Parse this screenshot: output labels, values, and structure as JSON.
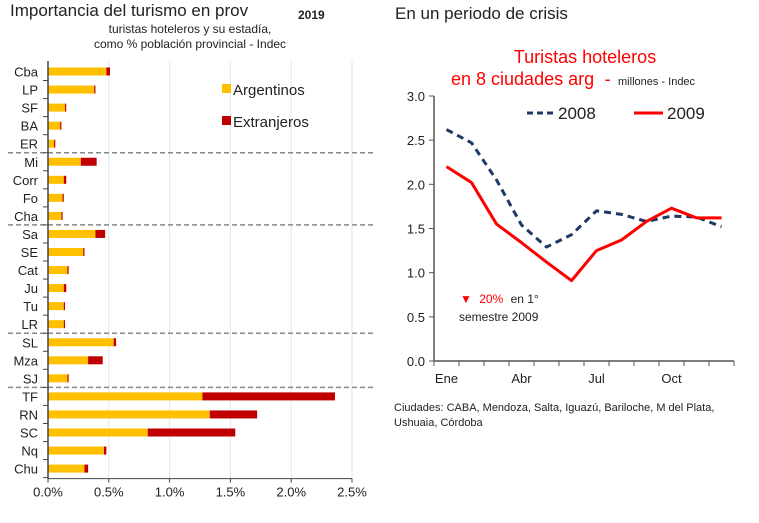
{
  "left": {
    "title": "Importancia del turismo en prov",
    "year": "2019",
    "subtitle_1": "turistas hoteleros y su estadía,",
    "subtitle_2": "como % población provincial - Indec"
  },
  "right": {
    "heading": "En un periodo de crisis",
    "chart_title_1": "Turistas hoteleros",
    "chart_title_2": "en 8 ciudades arg",
    "chart_title_sep": "-",
    "chart_title_units": "millones - Indec",
    "annotation_arrow": "▼",
    "annotation_pct": "20%",
    "annotation_rest": "en 1°",
    "annotation_line2": "semestre 2009",
    "footnote": "Ciudades: CABA, Mendoza, Salta, Iguazú, Bariloche, M del Plata, Ushuaia, Córdoba"
  },
  "colors": {
    "argentinos": "#FFC000",
    "extranjeros": "#C00000",
    "line_2008": "#1F3864",
    "line_2009": "#FF0000"
  },
  "chart_data": [
    {
      "type": "bar",
      "orientation": "horizontal",
      "stacked": true,
      "title": "Importancia del turismo en prov",
      "subtitle": "turistas hoteleros y su estadía, como % población provincial - Indec",
      "xlabel": "",
      "ylabel": "",
      "xlim": [
        0,
        0.025
      ],
      "x_ticks": [
        "0.0%",
        "0.5%",
        "1.0%",
        "1.5%",
        "2.0%",
        "2.5%"
      ],
      "x_tick_values": [
        0,
        0.005,
        0.01,
        0.015,
        0.02,
        0.025
      ],
      "grid": "vertical",
      "legend": {
        "position": "top-right",
        "entries": [
          "Argentinos",
          "Extranjeros"
        ]
      },
      "groups": [
        {
          "categories": [
            "Cba",
            "LP",
            "SF",
            "BA",
            "ER"
          ]
        },
        {
          "categories": [
            "Mi",
            "Corr",
            "Fo",
            "Cha"
          ]
        },
        {
          "categories": [
            "Sa",
            "SE",
            "Cat",
            "Ju",
            "Tu",
            "LR"
          ]
        },
        {
          "categories": [
            "SL",
            "Mza",
            "SJ"
          ]
        },
        {
          "categories": [
            "TF",
            "RN",
            "SC",
            "Nq",
            "Chu"
          ]
        }
      ],
      "categories": [
        "Cba",
        "LP",
        "SF",
        "BA",
        "ER",
        "Mi",
        "Corr",
        "Fo",
        "Cha",
        "Sa",
        "SE",
        "Cat",
        "Ju",
        "Tu",
        "LR",
        "SL",
        "Mza",
        "SJ",
        "TF",
        "RN",
        "SC",
        "Nq",
        "Chu"
      ],
      "series": [
        {
          "name": "Argentinos",
          "values": [
            0.0048,
            0.0038,
            0.0014,
            0.001,
            0.0005,
            0.0027,
            0.0013,
            0.0012,
            0.0011,
            0.0039,
            0.0029,
            0.0016,
            0.0013,
            0.0013,
            0.0013,
            0.0054,
            0.0033,
            0.0016,
            0.0127,
            0.0133,
            0.0082,
            0.0046,
            0.003
          ]
        },
        {
          "name": "Extranjeros",
          "values": [
            0.0003,
            0.0001,
            0.0001,
            0.0001,
            0.0001,
            0.0013,
            0.0002,
            0.0001,
            0.0001,
            0.0008,
            0.0001,
            0.0001,
            0.0002,
            0.0001,
            0.0001,
            0.0002,
            0.0012,
            0.0001,
            0.0109,
            0.0039,
            0.0072,
            0.0002,
            0.0003
          ]
        }
      ]
    },
    {
      "type": "line",
      "title": "Turistas hoteleros en 8 ciudades arg - millones - Indec",
      "xlabel": "",
      "ylabel": "",
      "x": [
        "Ene",
        "Feb",
        "Mar",
        "Abr",
        "May",
        "Jun",
        "Jul",
        "Ago",
        "Sep",
        "Oct",
        "Nov",
        "Dic"
      ],
      "x_tick_labels": [
        "Ene",
        "Abr",
        "Jul",
        "Oct"
      ],
      "x_tick_label_indices": [
        0,
        3,
        6,
        9
      ],
      "ylim": [
        0,
        3.0
      ],
      "y_ticks": [
        "0.0",
        "0.5",
        "1.0",
        "1.5",
        "2.0",
        "2.5",
        "3.0"
      ],
      "y_tick_values": [
        0,
        0.5,
        1.0,
        1.5,
        2.0,
        2.5,
        3.0
      ],
      "grid": false,
      "legend": {
        "position": "top",
        "entries": [
          "2008",
          "2009"
        ]
      },
      "series": [
        {
          "name": "2008",
          "style": "dashed",
          "values": [
            2.62,
            2.47,
            2.05,
            1.54,
            1.29,
            1.43,
            1.7,
            1.66,
            1.58,
            1.64,
            1.63,
            1.52
          ]
        },
        {
          "name": "2009",
          "style": "solid",
          "values": [
            2.2,
            2.02,
            1.55,
            1.34,
            1.12,
            0.91,
            1.25,
            1.37,
            1.58,
            1.73,
            1.62,
            1.62
          ]
        }
      ],
      "annotations": [
        "▼ 20% en 1° semestre 2009"
      ]
    }
  ]
}
